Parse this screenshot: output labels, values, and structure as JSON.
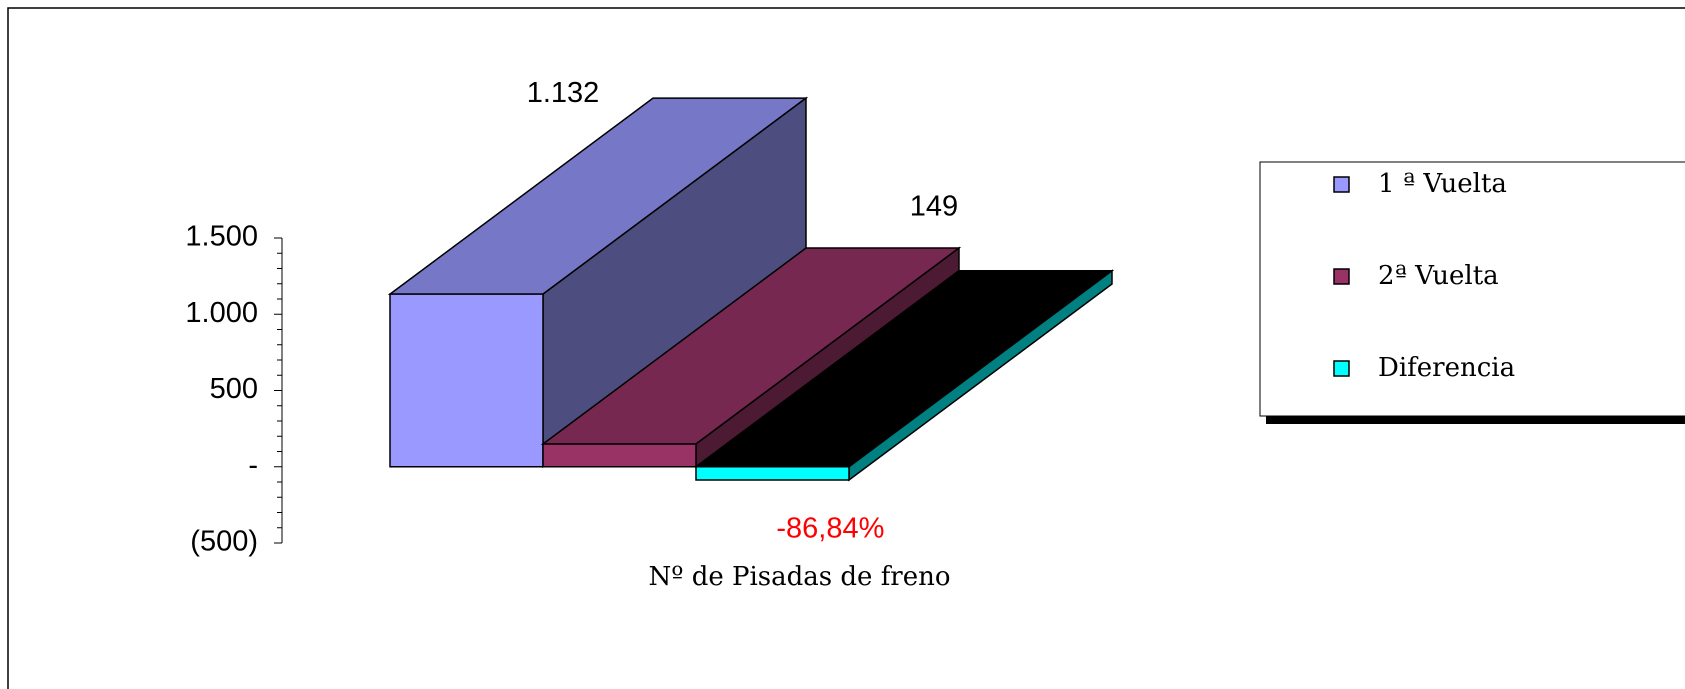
{
  "chart_data": {
    "type": "bar3d",
    "categories": [
      "Nº de Pisadas de freno"
    ],
    "series": [
      {
        "name": "1 ª Vuelta",
        "color": "#9999ff",
        "values": [
          1132
        ],
        "value_labels": [
          "1.132"
        ],
        "label_color": "#000000"
      },
      {
        "name": "2ª Vuelta",
        "color": "#993366",
        "values": [
          149
        ],
        "value_labels": [
          "149"
        ],
        "label_color": "#000000"
      },
      {
        "name": "Diferencia",
        "color": "#00ffff",
        "values": [
          -86.84
        ],
        "value_labels": [
          "-86,84%"
        ],
        "label_color": "#ff0000"
      }
    ],
    "ylim": [
      -500,
      1500
    ],
    "yticks": [
      {
        "value": 1500,
        "label": "1.500"
      },
      {
        "value": 1000,
        "label": "1.000"
      },
      500,
      {
        "value": 0,
        "label": "-"
      },
      {
        "value": -500,
        "label": "(500)"
      }
    ],
    "legend": "right"
  }
}
